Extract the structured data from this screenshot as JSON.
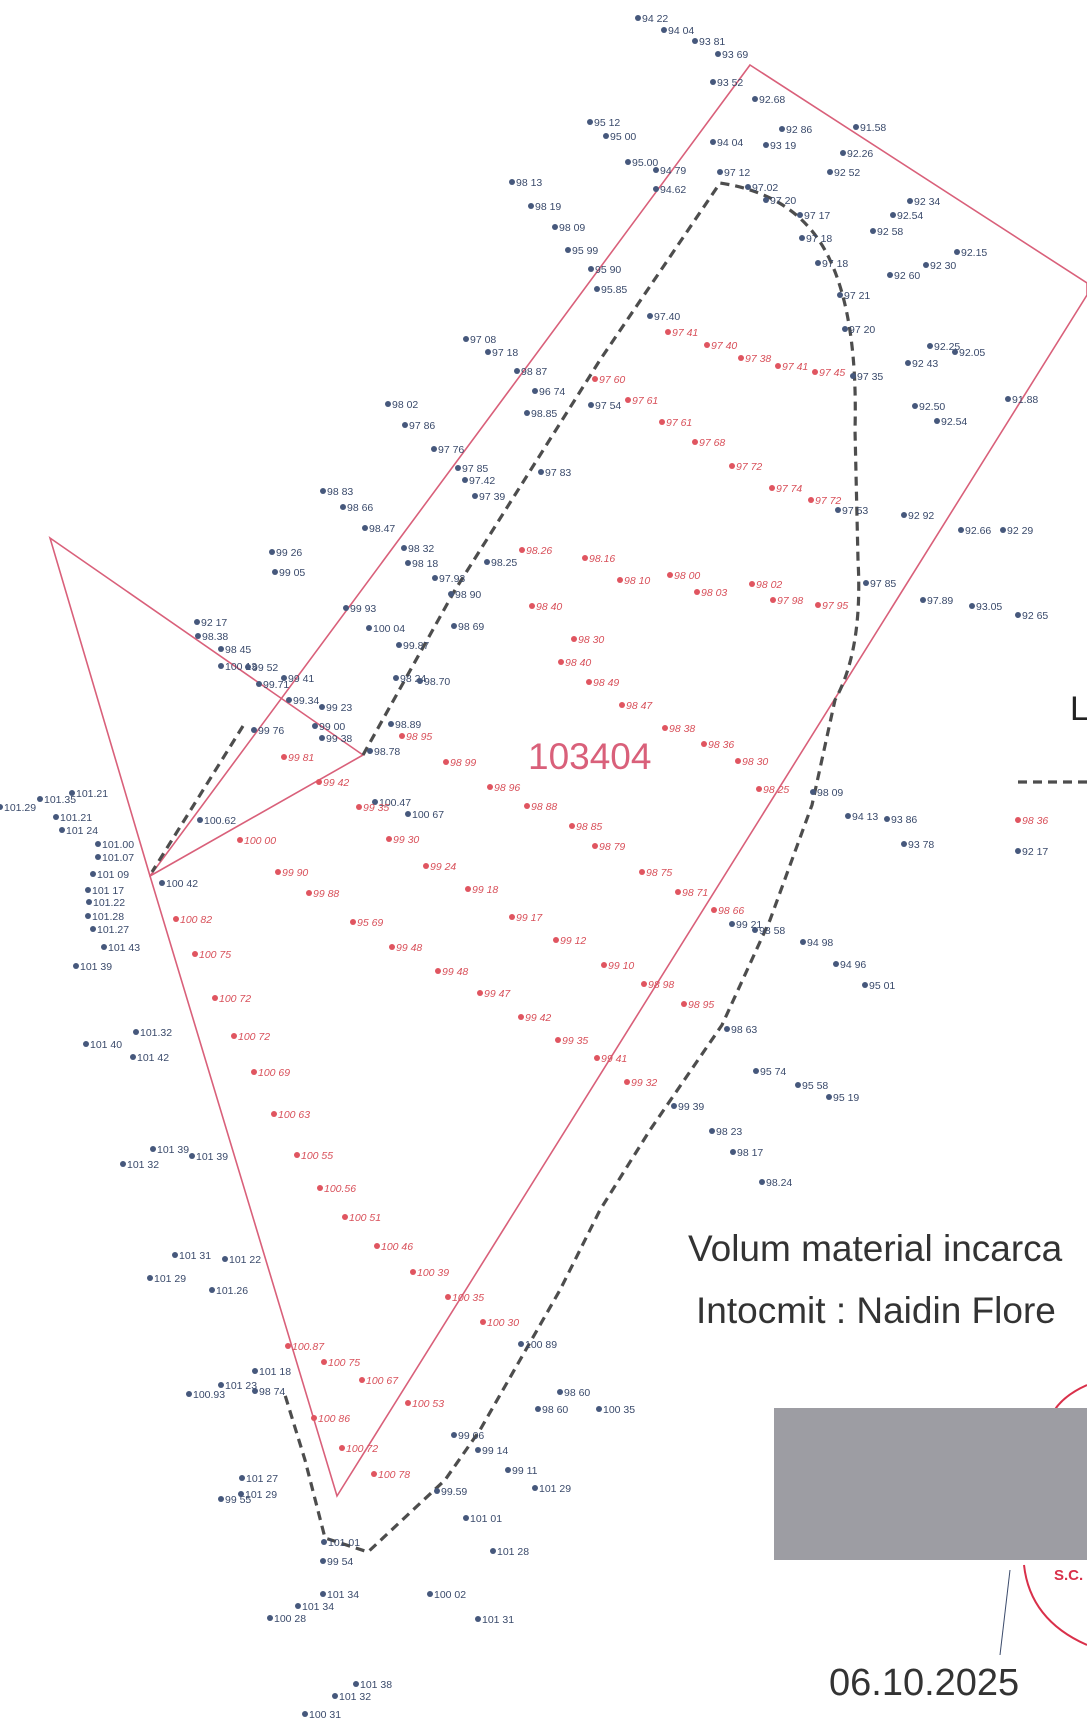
{
  "plan": {
    "parcel_id": "103404",
    "legend_letter": "L",
    "volume_label": "Volum material incarca",
    "author_label": "Intocmit : Naidin Flore",
    "date": "06.10.2025",
    "stamp_text": "S.C.",
    "colors": {
      "boundary": "#d9607a",
      "excavation_outline": "#4d4d4d",
      "point_blue": "#46587c",
      "point_red": "#e05560",
      "redaction_box": "#9d9da3",
      "stamp": "#d9304a"
    },
    "legend": {
      "red_sample": "98 36",
      "blue_sample": "92 17"
    }
  },
  "blue_points": [
    "94 22",
    "94 04",
    "93 81",
    "93 69",
    "93 52",
    "92.68",
    "92 86",
    "91.58",
    "95 12",
    "95 00",
    "94 04",
    "93 19",
    "92.26",
    "95.00",
    "94 79",
    "92 52",
    "98 13",
    "94.62",
    "97 12",
    "97.02",
    "97 20",
    "92 34",
    "98 19",
    "97 17",
    "92.54",
    "98 09",
    "97 18",
    "92 58",
    "92.15",
    "95 99",
    "97 18",
    "92 30",
    "95 90",
    "92 60",
    "95.85",
    "97 21",
    "97.40",
    "97 20",
    "97 08",
    "97 18",
    "92.25",
    "92.05",
    "98 87",
    "97 35",
    "92 43",
    "96 74",
    "97 54",
    "91.88",
    "98 02",
    "98.85",
    "92.50",
    "97 86",
    "92.54",
    "97 76",
    "97 83",
    "97 85",
    "97.42",
    "98 83",
    "97 39",
    "98 66",
    "97 53",
    "92 92",
    "98.47",
    "92.66",
    "92 29",
    "99 26",
    "98 32",
    "98.25",
    "99 05",
    "98 18",
    "97.93",
    "97 85",
    "98 90",
    "97.89",
    "93.05",
    "92 65",
    "92 17",
    "99 93",
    "98 69",
    "98.38",
    "100 04",
    "98 45",
    "99.87",
    "100 13",
    "98 24",
    "99 52",
    "99 41",
    "98.70",
    "99.71",
    "99.34",
    "99 23",
    "99 76",
    "98.89",
    "99 00",
    "98.78",
    "99 38",
    "101.21",
    "101.35",
    "101.29",
    "101.21",
    "101 24",
    "101.00",
    "101.07",
    "101 09",
    "101 17",
    "101.22",
    "101.28",
    "101.27",
    "101 43",
    "101 39",
    "98 09",
    "94 13",
    "93 86",
    "93 78",
    "98 58",
    "94 98",
    "94 96",
    "95 01",
    "98 63",
    "95 74",
    "95 58",
    "95 19",
    "99 39",
    "98 23",
    "98 17",
    "98.24",
    "101.32",
    "101 40",
    "101 42",
    "101 39",
    "101 32",
    "101 39",
    "101 31",
    "101 22",
    "101 29",
    "101.26",
    "101 18",
    "101 23",
    "100.93",
    "98 74",
    "98 60",
    "98 60",
    "100 35",
    "99 06",
    "99 14",
    "99 11",
    "101 29",
    "101 27",
    "101 29",
    "99 55",
    "99.59",
    "101 01",
    "101 01",
    "99 54",
    "101 28",
    "101 34",
    "101 34",
    "100 28",
    "100 02",
    "101 31",
    "101 38",
    "101 32",
    "100 31",
    "100 89",
    "100 42",
    "100.62",
    "100.47",
    "100 67",
    "99 21"
  ],
  "red_points": [
    "97 41",
    "97 40",
    "97 38",
    "97 41",
    "97 45",
    "97 60",
    "97 61",
    "97 61",
    "97 68",
    "97 72",
    "97 74",
    "97 72",
    "98.26",
    "98.16",
    "98 10",
    "98 00",
    "98 03",
    "98 02",
    "97 98",
    "97 95",
    "98 40",
    "98 30",
    "98 40",
    "98 49",
    "98 47",
    "98 38",
    "98 36",
    "98 30",
    "98 25",
    "98 95",
    "99 81",
    "98 99",
    "98 96",
    "99 42",
    "98 88",
    "98 85",
    "98 79",
    "99 35",
    "100 00",
    "99 30",
    "99 24",
    "98 75",
    "99 90",
    "99 88",
    "99 18",
    "98 71",
    "98 66",
    "99 17",
    "100 82",
    "99 48",
    "99 48",
    "99 12",
    "99 10",
    "100 75",
    "98 98",
    "99 47",
    "98 95",
    "100 72",
    "99 42",
    "100 72",
    "99 35",
    "99 41",
    "99 32",
    "100 69",
    "100 63",
    "100 55",
    "100.56",
    "100 51",
    "100 46",
    "100 39",
    "100 35",
    "100 30",
    "100.87",
    "100 75",
    "100 67",
    "100 53",
    "100 86",
    "100 72",
    "100 78",
    "95 69"
  ]
}
